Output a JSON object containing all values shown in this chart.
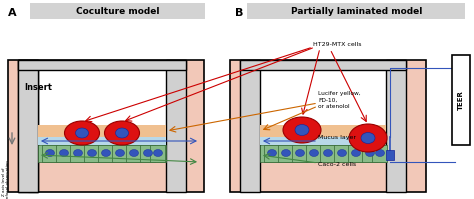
{
  "fig_width": 4.74,
  "fig_height": 1.99,
  "dpi": 100,
  "background": "#ffffff",
  "label_A": "A",
  "label_B": "B",
  "title_A": "Coculture model",
  "title_B": "Partially laminated model",
  "title_bg": "#d3d3d3",
  "insert_label": "Insert",
  "teer_label": "TEER",
  "z_axis_label": "Z axis level of\nconfocal observation",
  "ann_ht29": "HT29-MTX cells",
  "ann_lucifer": "Lucifer yellow,\nFD-10,\nor atenolol",
  "ann_mucus": "Mucus layer",
  "ann_caco": "Caco-2 cells",
  "pink_bg": "#f2c8b8",
  "salmon_layer": "#f0c090",
  "blue_layer": "#b8d8e8",
  "green_cell_color": "#88bb88",
  "cell_outline": "#336633",
  "red_cell_color": "#dd1111",
  "blue_oval_color": "#3355bb",
  "arrow_red": "#cc0000",
  "arrow_orange": "#cc6600",
  "arrow_blue": "#3355bb",
  "arrow_green": "#448844",
  "arrow_gray": "#777777",
  "electrode_blue": "#3355bb",
  "insert_wall": "#d0d0d0",
  "well_wall": "#000000"
}
